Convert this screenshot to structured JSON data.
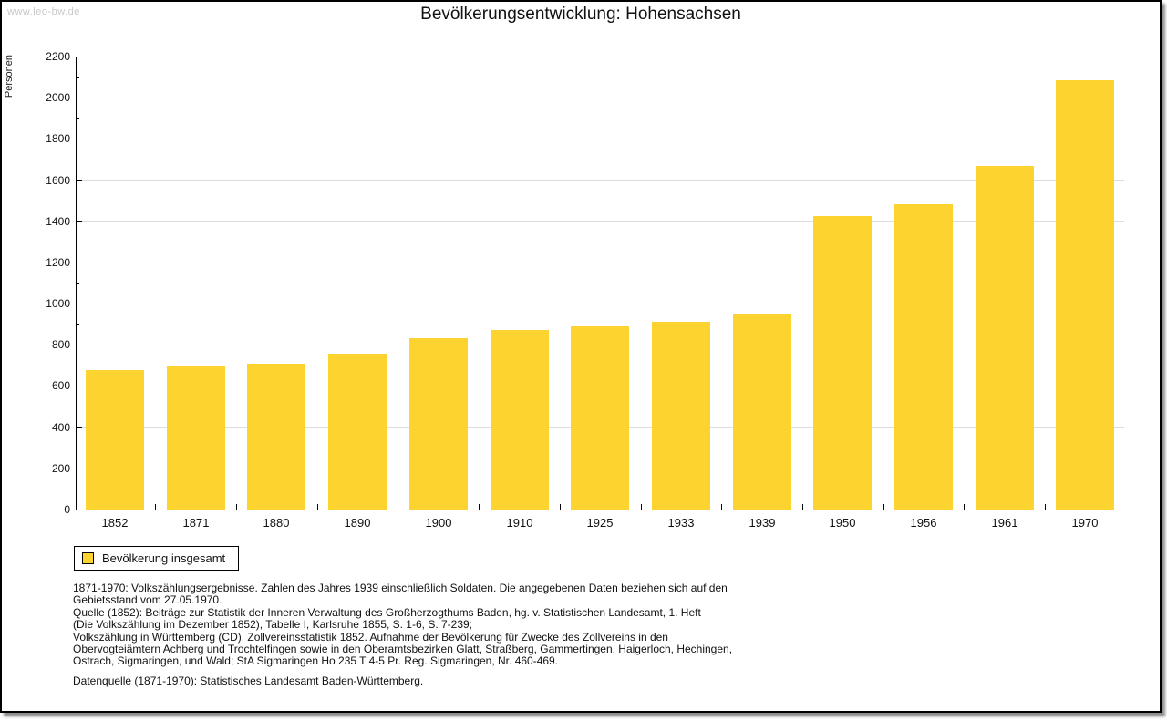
{
  "watermark": "www.leo-bw.de",
  "chart_data": {
    "type": "bar",
    "title": "Bevölkerungsentwicklung: Hohensachsen",
    "ylabel": "Personen",
    "xlabel": "",
    "categories": [
      "1852",
      "1871",
      "1880",
      "1890",
      "1900",
      "1910",
      "1925",
      "1933",
      "1939",
      "1950",
      "1956",
      "1961",
      "1970"
    ],
    "series": [
      {
        "name": "Bevölkerung insgesamt",
        "values": [
          676,
          695,
          710,
          757,
          832,
          872,
          888,
          911,
          949,
          1425,
          1484,
          1670,
          2085
        ]
      }
    ],
    "ylim": [
      0,
      2200
    ],
    "ytick_step": 200,
    "y_minor_tick_step": 100,
    "grid": true,
    "gridline_color": "#dcdcdc",
    "bar_color": "#fcd32f",
    "legend_position": "below-chart-left"
  },
  "footer": {
    "notes_lines": [
      "1871-1970: Volkszählungsergebnisse. Zahlen des Jahres 1939 einschließlich Soldaten. Die angegebenen Daten beziehen sich auf den",
      "Gebietsstand vom 27.05.1970.",
      "Quelle (1852): Beiträge zur Statistik der Inneren Verwaltung des Großherzogthums Baden, hg. v. Statistischen Landesamt, 1. Heft",
      "(Die Volkszählung im Dezember 1852), Tabelle I, Karlsruhe 1855, S. 1-6, S. 7-239;",
      "Volkszählung in Württemberg (CD), Zollvereinsstatistik 1852. Aufnahme der Bevölkerung für Zwecke des Zollvereins in den",
      "Obervogteiämtern Achberg und Trochtelfingen sowie in den Oberamtsbezirken Glatt, Straßberg, Gammertingen, Haigerloch, Hechingen,",
      "Ostrach, Sigmaringen, und Wald; StA Sigmaringen Ho 235 T 4-5 Pr. Reg. Sigmaringen, Nr. 460-469."
    ],
    "datasource": "Datenquelle (1871-1970): Statistisches Landesamt Baden-Württemberg."
  }
}
